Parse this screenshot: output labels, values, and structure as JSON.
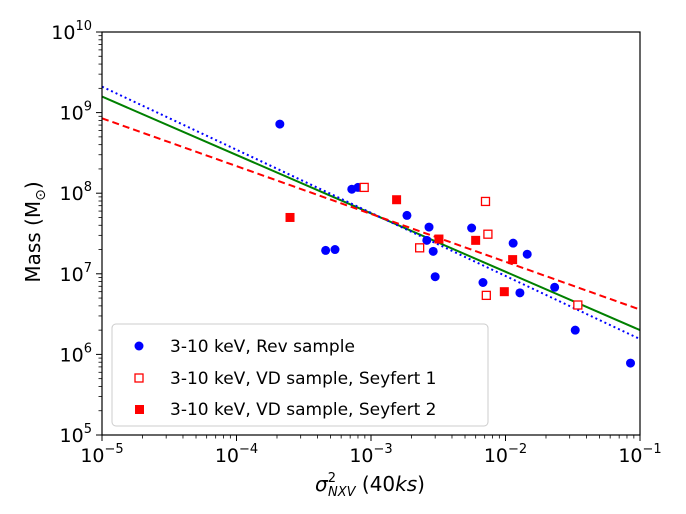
{
  "chart_data": {
    "type": "scatter",
    "xscale": "log",
    "yscale": "log",
    "xlim": [
      1e-05,
      0.1
    ],
    "ylim": [
      100000.0,
      10000000000.0
    ],
    "xlabel": {
      "sigma": "σ",
      "sup": "2",
      "sub": "NXV",
      "open": " (40",
      "ks": "ks",
      "close": ")"
    },
    "ylabel": {
      "text": "Mass (M",
      "sun": "⊙",
      "close": ")"
    },
    "x_ticks": [
      {
        "base": "10",
        "exp": "−5",
        "value": 1e-05
      },
      {
        "base": "10",
        "exp": "−4",
        "value": 0.0001
      },
      {
        "base": "10",
        "exp": "−3",
        "value": 0.001
      },
      {
        "base": "10",
        "exp": "−2",
        "value": 0.01
      },
      {
        "base": "10",
        "exp": "−1",
        "value": 0.1
      }
    ],
    "y_ticks": [
      {
        "base": "10",
        "exp": "5",
        "value": 100000.0
      },
      {
        "base": "10",
        "exp": "6",
        "value": 1000000.0
      },
      {
        "base": "10",
        "exp": "7",
        "value": 10000000.0
      },
      {
        "base": "10",
        "exp": "8",
        "value": 100000000.0
      },
      {
        "base": "10",
        "exp": "9",
        "value": 1000000000.0
      },
      {
        "base": "10",
        "exp": "10",
        "value": 10000000000.0
      }
    ],
    "series": [
      {
        "name": "3-10 keV, Rev sample",
        "marker": "circle",
        "color": "#0000ff",
        "points": [
          [
            0.00021,
            720000000.0
          ],
          [
            0.00046,
            19500000.0
          ],
          [
            0.00054,
            20000000.0
          ],
          [
            0.00072,
            112000000.0
          ],
          [
            0.0008,
            118000000.0
          ],
          [
            0.00185,
            53000000.0
          ],
          [
            0.0026,
            26000000.0
          ],
          [
            0.0027,
            38000000.0
          ],
          [
            0.0029,
            19000000.0
          ],
          [
            0.003,
            9200000.0
          ],
          [
            0.0056,
            37000000.0
          ],
          [
            0.0068,
            7800000.0
          ],
          [
            0.0114,
            24000000.0
          ],
          [
            0.0128,
            5800000.0
          ],
          [
            0.0145,
            17500000.0
          ],
          [
            0.0232,
            6800000.0
          ],
          [
            0.033,
            2000000.0
          ],
          [
            0.085,
            780000.0
          ]
        ]
      },
      {
        "name": "3-10 keV, VD sample, Seyfert 1",
        "marker": "open-square",
        "color": "#ff0000",
        "points": [
          [
            0.00089,
            118000000.0
          ],
          [
            0.0023,
            21000000.0
          ],
          [
            0.0071,
            79000000.0
          ],
          [
            0.0072,
            5400000.0
          ],
          [
            0.0074,
            31000000.0
          ],
          [
            0.0345,
            4100000.0
          ]
        ]
      },
      {
        "name": "3-10 keV, VD sample, Seyfert 2",
        "marker": "filled-square",
        "color": "#ff0000",
        "points": [
          [
            0.00025,
            50000000.0
          ],
          [
            0.00155,
            83000000.0
          ],
          [
            0.0032,
            27000000.0
          ],
          [
            0.006,
            26000000.0
          ],
          [
            0.0098,
            6000000.0
          ],
          [
            0.0113,
            15000000.0
          ]
        ]
      }
    ],
    "fit_lines": [
      {
        "style": "solid",
        "color": "#008000",
        "points": [
          [
            1e-05,
            1580000000.0
          ],
          [
            0.1,
            2000000.0
          ]
        ]
      },
      {
        "style": "dotted",
        "color": "#0000ff",
        "points": [
          [
            1e-05,
            2100000000.0
          ],
          [
            0.1,
            1550000.0
          ]
        ]
      },
      {
        "style": "dashed",
        "color": "#ff0000",
        "points": [
          [
            1e-05,
            850000000.0
          ],
          [
            0.1,
            3600000.0
          ]
        ]
      }
    ],
    "legend_position": "lower-left"
  }
}
